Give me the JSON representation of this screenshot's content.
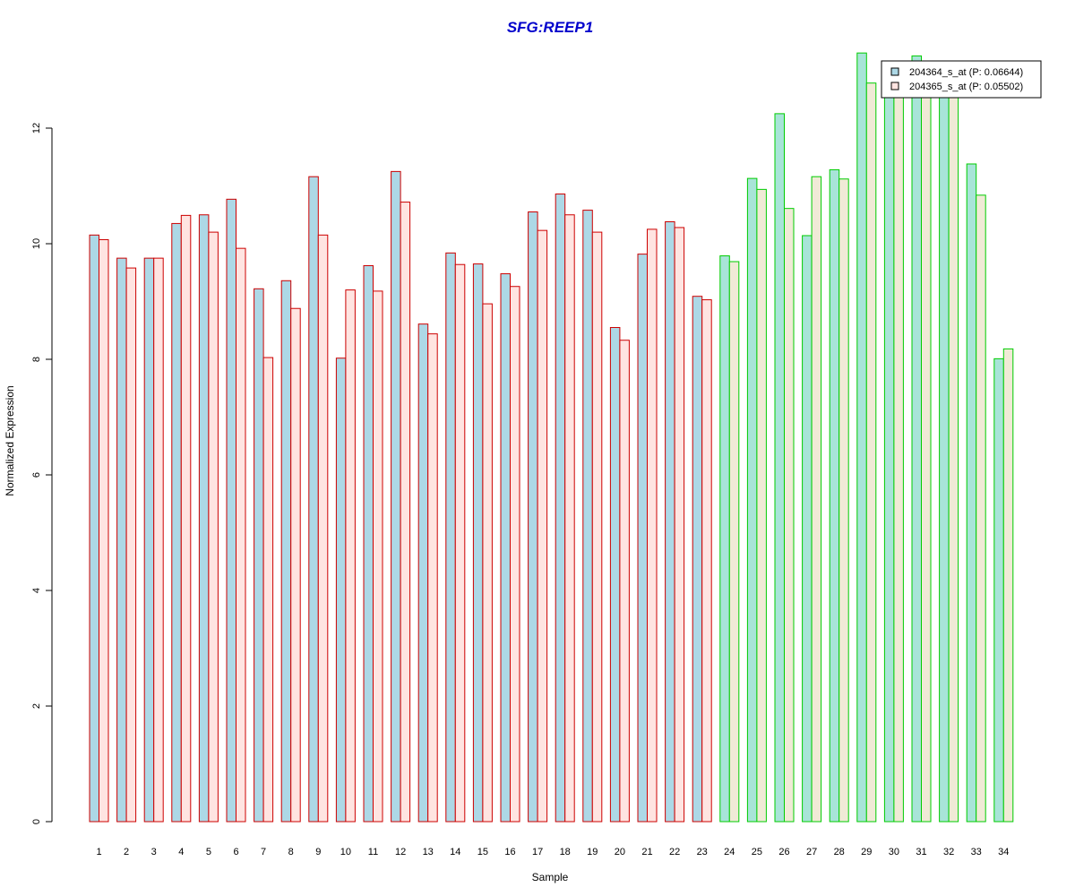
{
  "chart_data": {
    "type": "bar",
    "title": "SFG:REEP1",
    "xlabel": "Sample",
    "ylabel": "Normalized Expression",
    "ylim": [
      0,
      13.5
    ],
    "yticks": [
      0,
      2,
      4,
      6,
      8,
      10,
      12
    ],
    "categories": [
      "1",
      "2",
      "3",
      "4",
      "5",
      "6",
      "7",
      "8",
      "9",
      "10",
      "11",
      "12",
      "13",
      "14",
      "15",
      "16",
      "17",
      "18",
      "19",
      "20",
      "21",
      "22",
      "23",
      "24",
      "25",
      "26",
      "27",
      "28",
      "29",
      "30",
      "31",
      "32",
      "33",
      "34"
    ],
    "groups": [
      {
        "range": [
          1,
          23
        ],
        "border_color": "#CC0000",
        "fills": [
          "#ADD8E6",
          "#FFE4E1"
        ]
      },
      {
        "range": [
          24,
          34
        ],
        "border_color": "#00CC00",
        "fills": [
          "#A8E4D8",
          "#F0EAD6"
        ]
      }
    ],
    "series": [
      {
        "name": "204364_s_at (P: 0.06644)",
        "values": [
          10.15,
          9.75,
          9.75,
          10.35,
          10.5,
          10.77,
          9.22,
          9.36,
          11.16,
          8.02,
          9.62,
          11.25,
          8.61,
          9.84,
          9.65,
          9.48,
          10.55,
          10.86,
          10.58,
          8.55,
          9.82,
          10.38,
          9.09,
          9.79,
          11.13,
          12.25,
          10.14,
          11.28,
          13.3,
          12.75,
          13.25,
          12.7,
          11.38,
          8.01
        ]
      },
      {
        "name": "204365_s_at (P: 0.05502)",
        "values": [
          10.07,
          9.58,
          9.75,
          10.49,
          10.2,
          9.92,
          8.03,
          8.88,
          10.15,
          9.2,
          9.18,
          10.72,
          8.44,
          9.64,
          8.96,
          9.26,
          10.23,
          10.5,
          10.2,
          8.33,
          10.25,
          10.28,
          9.03,
          9.69,
          10.94,
          10.61,
          11.16,
          11.12,
          12.78,
          12.75,
          12.7,
          12.7,
          10.84,
          8.18
        ]
      }
    ],
    "legend": {
      "position": "top-right",
      "fills": [
        "#ADD8E6",
        "#FFE4E1"
      ],
      "border_color": "#000000"
    },
    "grid": false
  }
}
